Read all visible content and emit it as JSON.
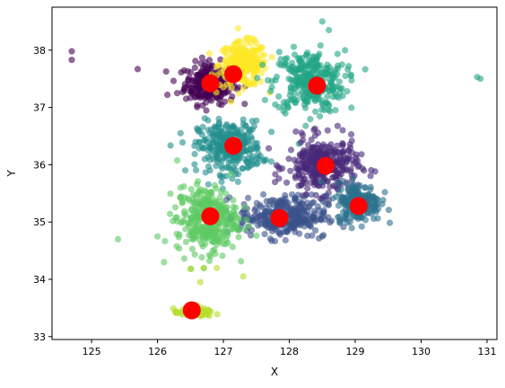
{
  "chart_data": {
    "type": "scatter",
    "title": "",
    "xlabel": "X",
    "ylabel": "Y",
    "xlim": [
      124.4,
      131.15
    ],
    "ylim": [
      32.95,
      38.75
    ],
    "x_ticks": [
      125,
      126,
      127,
      128,
      129,
      130,
      131
    ],
    "y_ticks": [
      33,
      34,
      35,
      36,
      37,
      38
    ],
    "grid": false,
    "legend": "none",
    "clusters": [
      {
        "color": "#440154",
        "center": [
          126.8,
          37.42
        ],
        "spread": [
          0.32,
          0.3
        ],
        "count": 260,
        "extra": [
          [
            124.7,
            37.98
          ],
          [
            124.7,
            37.83
          ],
          [
            125.7,
            37.67
          ],
          [
            126.15,
            37.22
          ],
          [
            126.3,
            37.25
          ]
        ]
      },
      {
        "color": "#fde725",
        "center": [
          127.3,
          37.75
        ],
        "spread": [
          0.3,
          0.32
        ],
        "count": 240,
        "extra": []
      },
      {
        "color": "#21a585",
        "center": [
          128.3,
          37.45
        ],
        "spread": [
          0.45,
          0.45
        ],
        "count": 300,
        "extra": [
          [
            130.85,
            37.53
          ],
          [
            130.9,
            37.5
          ],
          [
            128.5,
            38.5
          ],
          [
            128.6,
            38.35
          ]
        ]
      },
      {
        "color": "#21908d",
        "center": [
          127.1,
          36.3
        ],
        "spread": [
          0.4,
          0.38
        ],
        "count": 300,
        "extra": [
          [
            126.35,
            36.55
          ]
        ]
      },
      {
        "color": "#482878",
        "center": [
          128.5,
          35.98
        ],
        "spread": [
          0.45,
          0.4
        ],
        "count": 320,
        "extra": []
      },
      {
        "color": "#3b528b",
        "center": [
          127.9,
          35.1
        ],
        "spread": [
          0.55,
          0.3
        ],
        "count": 300,
        "extra": [
          [
            128.5,
            34.75
          ]
        ]
      },
      {
        "color": "#2c728e",
        "center": [
          129.05,
          35.35
        ],
        "spread": [
          0.28,
          0.28
        ],
        "count": 220,
        "extra": []
      },
      {
        "color": "#5ec962",
        "center": [
          126.75,
          35.05
        ],
        "spread": [
          0.38,
          0.48
        ],
        "count": 320,
        "extra": [
          [
            125.4,
            34.7
          ],
          [
            126.0,
            34.75
          ],
          [
            126.1,
            34.3
          ],
          [
            126.35,
            35.6
          ]
        ]
      },
      {
        "color": "#b5de2b",
        "center": [
          126.55,
          33.42
        ],
        "spread": [
          0.25,
          0.06
        ],
        "count": 80,
        "extra": [
          [
            126.5,
            34.18
          ],
          [
            126.7,
            34.2
          ],
          [
            126.9,
            34.2
          ],
          [
            126.65,
            33.95
          ],
          [
            127.3,
            34.05
          ]
        ]
      }
    ],
    "centroids": {
      "color": "#ff0000",
      "points": [
        [
          126.8,
          37.42
        ],
        [
          127.15,
          37.58
        ],
        [
          128.42,
          37.38
        ],
        [
          127.15,
          36.33
        ],
        [
          128.55,
          35.98
        ],
        [
          127.85,
          35.07
        ],
        [
          129.05,
          35.28
        ],
        [
          126.8,
          35.1
        ],
        [
          126.52,
          33.46
        ]
      ]
    }
  }
}
